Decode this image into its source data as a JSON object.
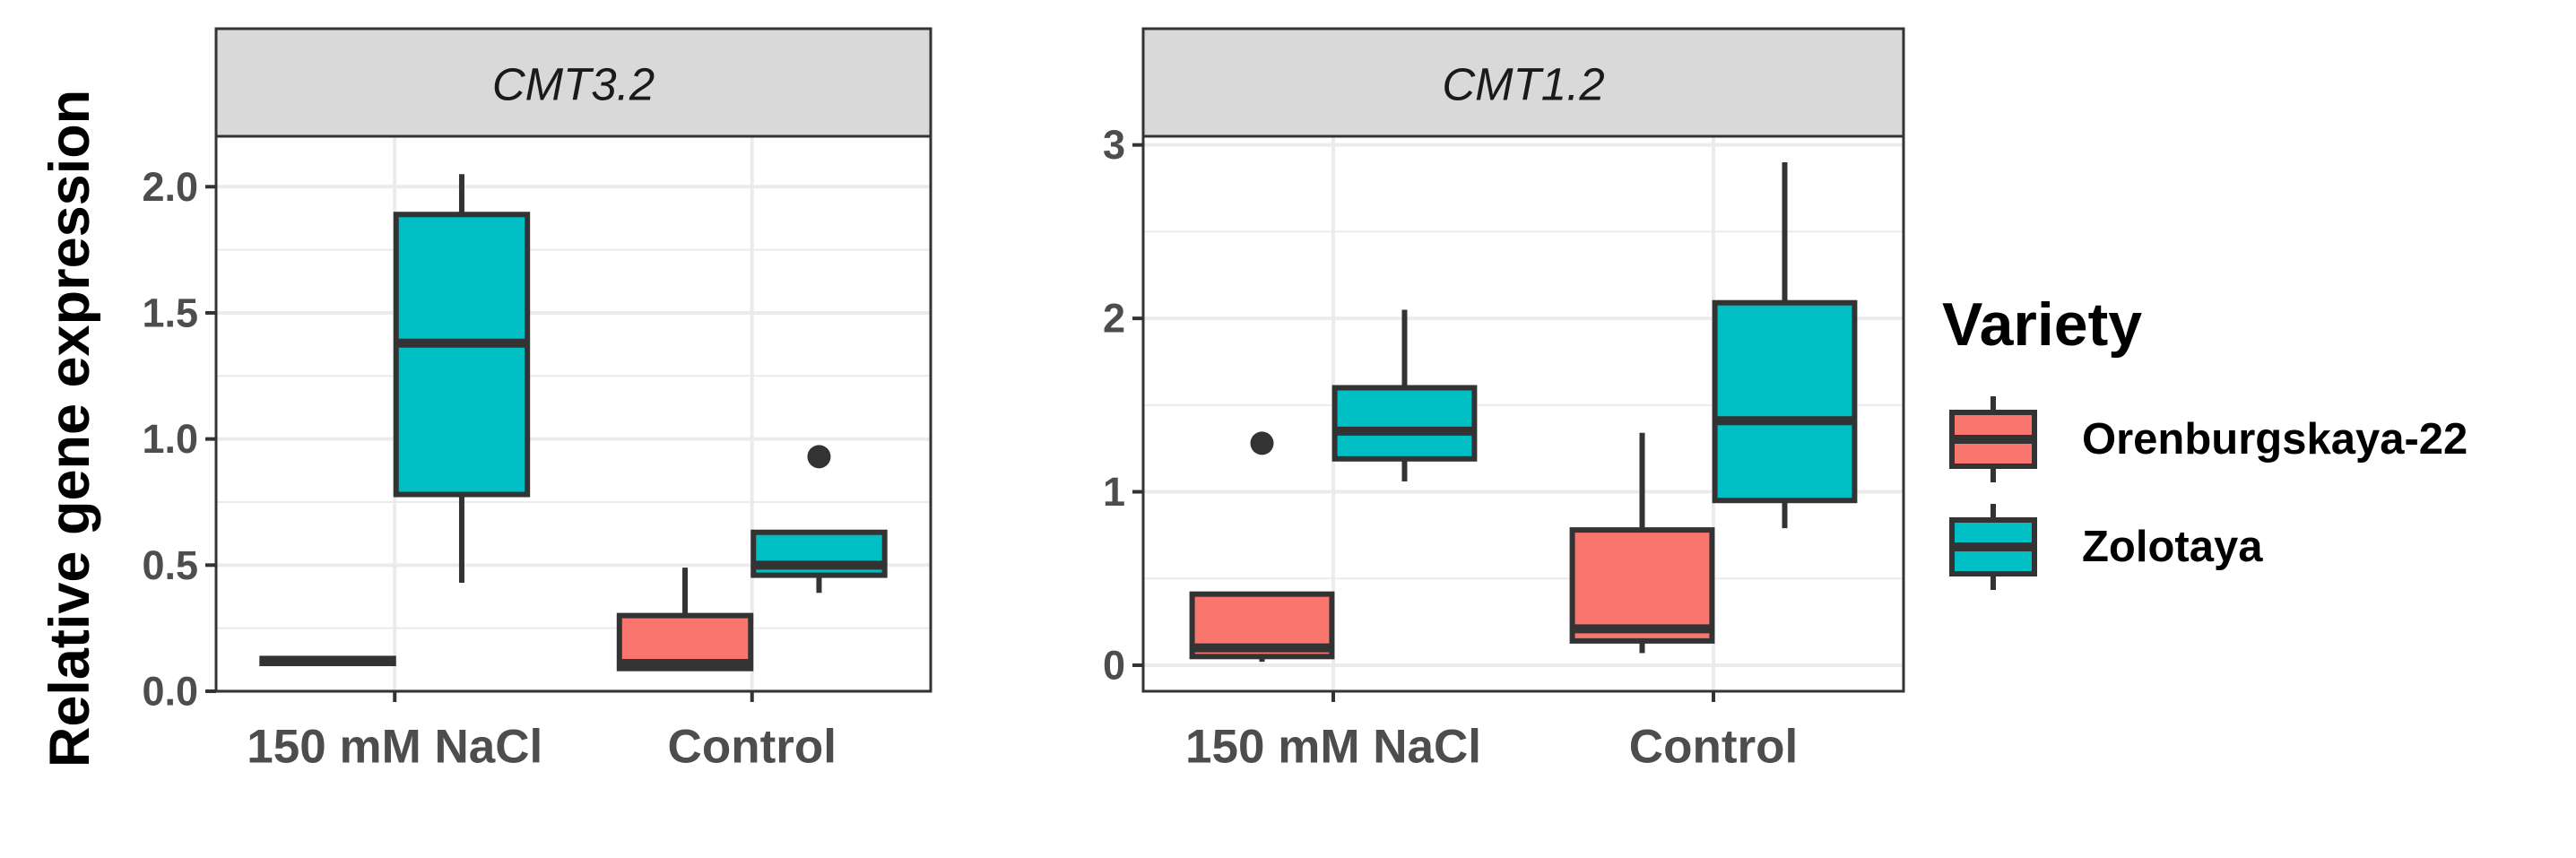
{
  "chart_data": [
    {
      "type": "boxplot",
      "title": "CMT3.2",
      "ylabel": "Relative gene expression",
      "categories": [
        "150 mM NaCl",
        "Control"
      ],
      "ylim": [
        0,
        2.2
      ],
      "y_ticks": [
        "0.0",
        "0.5",
        "1.0",
        "1.5",
        "2.0"
      ],
      "series": [
        {
          "name": "Orenburgskaya-22",
          "boxes": [
            {
              "category": "150 mM NaCl",
              "min": 0.11,
              "q1": 0.11,
              "median": 0.12,
              "q3": 0.13,
              "max": 0.14,
              "outliers": []
            },
            {
              "category": "Control",
              "min": 0.09,
              "q1": 0.09,
              "median": 0.11,
              "q3": 0.3,
              "max": 0.49,
              "outliers": []
            }
          ]
        },
        {
          "name": "Zolotaya",
          "boxes": [
            {
              "category": "150 mM NaCl",
              "min": 0.43,
              "q1": 0.78,
              "median": 1.38,
              "q3": 1.89,
              "max": 2.05,
              "outliers": []
            },
            {
              "category": "Control",
              "min": 0.39,
              "q1": 0.46,
              "median": 0.5,
              "q3": 0.63,
              "max": 0.63,
              "outliers": [
                0.93
              ]
            }
          ]
        }
      ]
    },
    {
      "type": "boxplot",
      "title": "CMT1.2",
      "ylabel": "Relative gene expression",
      "categories": [
        "150 mM NaCl",
        "Control"
      ],
      "ylim": [
        -0.15,
        3.05
      ],
      "y_ticks": [
        "0",
        "1",
        "2",
        "3"
      ],
      "series": [
        {
          "name": "Orenburgskaya-22",
          "boxes": [
            {
              "category": "150 mM NaCl",
              "min": 0.02,
              "q1": 0.05,
              "median": 0.1,
              "q3": 0.41,
              "max": 0.41,
              "outliers": [
                1.28
              ]
            },
            {
              "category": "Control",
              "min": 0.07,
              "q1": 0.14,
              "median": 0.21,
              "q3": 0.78,
              "max": 1.34,
              "outliers": []
            }
          ]
        },
        {
          "name": "Zolotaya",
          "boxes": [
            {
              "category": "150 mM NaCl",
              "min": 1.06,
              "q1": 1.19,
              "median": 1.35,
              "q3": 1.6,
              "max": 2.05,
              "outliers": []
            },
            {
              "category": "Control",
              "min": 0.79,
              "q1": 0.95,
              "median": 1.41,
              "q3": 2.09,
              "max": 2.9,
              "outliers": []
            }
          ]
        }
      ]
    }
  ],
  "legend": {
    "title": "Variety",
    "items": [
      {
        "label": "Orenburgskaya-22",
        "color": "#f8766d"
      },
      {
        "label": "Zolotaya",
        "color": "#00bfc4"
      }
    ]
  },
  "colors": {
    "Orenburgskaya-22": "#f8766d",
    "Zolotaya": "#00bfc4"
  }
}
